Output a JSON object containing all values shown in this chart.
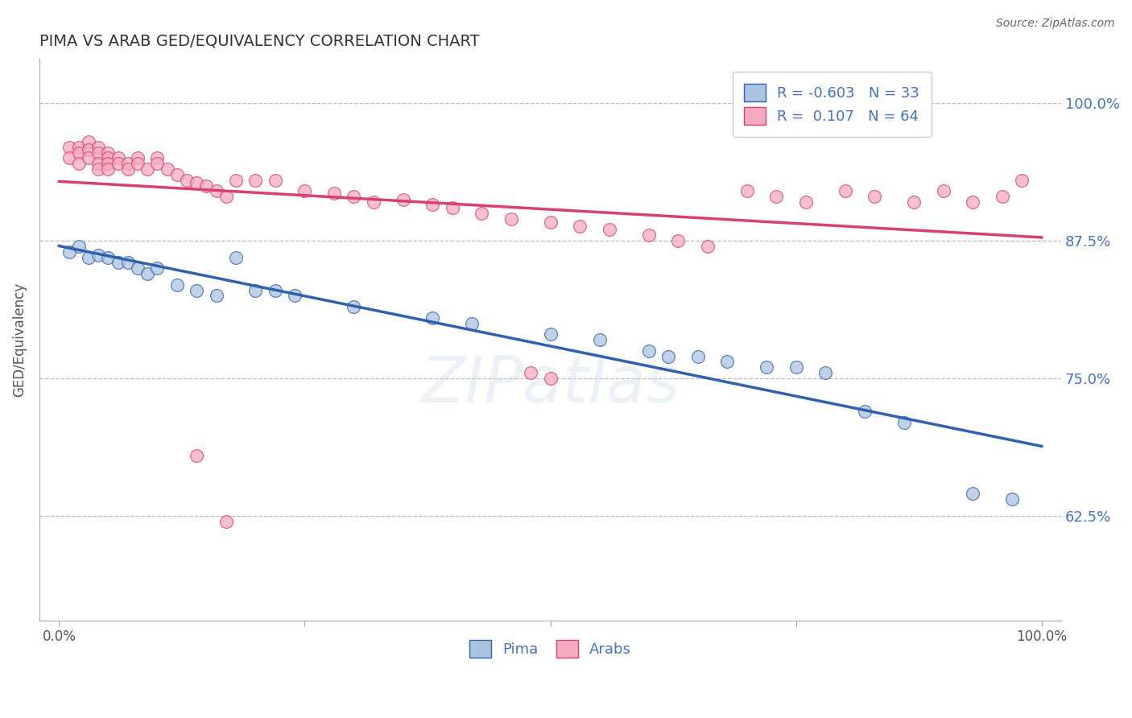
{
  "title": "PIMA VS ARAB GED/EQUIVALENCY CORRELATION CHART",
  "source": "Source: ZipAtlas.com",
  "ylabel": "GED/Equivalency",
  "ytick_labels": [
    "62.5%",
    "75.0%",
    "87.5%",
    "100.0%"
  ],
  "ytick_values": [
    0.625,
    0.75,
    0.875,
    1.0
  ],
  "pima_color": "#aac4e0",
  "arab_color": "#f5aabf",
  "pima_line_color": "#3060b0",
  "arab_line_color": "#d84070",
  "watermark": "ZIPatlas",
  "pima_x": [
    0.01,
    0.02,
    0.03,
    0.04,
    0.05,
    0.06,
    0.07,
    0.08,
    0.09,
    0.1,
    0.12,
    0.14,
    0.16,
    0.18,
    0.2,
    0.22,
    0.24,
    0.3,
    0.38,
    0.42,
    0.5,
    0.55,
    0.6,
    0.62,
    0.65,
    0.68,
    0.72,
    0.75,
    0.78,
    0.82,
    0.86,
    0.93,
    0.97
  ],
  "pima_y": [
    0.865,
    0.87,
    0.86,
    0.862,
    0.86,
    0.855,
    0.855,
    0.85,
    0.845,
    0.85,
    0.835,
    0.83,
    0.825,
    0.86,
    0.83,
    0.83,
    0.825,
    0.815,
    0.805,
    0.8,
    0.79,
    0.785,
    0.775,
    0.77,
    0.77,
    0.765,
    0.76,
    0.76,
    0.755,
    0.72,
    0.71,
    0.645,
    0.64
  ],
  "arab_x": [
    0.01,
    0.01,
    0.02,
    0.02,
    0.02,
    0.03,
    0.03,
    0.03,
    0.04,
    0.04,
    0.04,
    0.04,
    0.05,
    0.05,
    0.05,
    0.05,
    0.06,
    0.06,
    0.07,
    0.07,
    0.08,
    0.08,
    0.09,
    0.1,
    0.1,
    0.11,
    0.12,
    0.13,
    0.14,
    0.15,
    0.16,
    0.17,
    0.18,
    0.2,
    0.22,
    0.25,
    0.28,
    0.3,
    0.32,
    0.35,
    0.38,
    0.4,
    0.43,
    0.46,
    0.5,
    0.53,
    0.56,
    0.6,
    0.63,
    0.66,
    0.7,
    0.73,
    0.76,
    0.8,
    0.83,
    0.87,
    0.9,
    0.93,
    0.96,
    0.98,
    0.14,
    0.17,
    0.48,
    0.5
  ],
  "arab_y": [
    0.96,
    0.95,
    0.96,
    0.955,
    0.945,
    0.965,
    0.958,
    0.95,
    0.96,
    0.955,
    0.945,
    0.94,
    0.955,
    0.95,
    0.945,
    0.94,
    0.95,
    0.945,
    0.945,
    0.94,
    0.95,
    0.945,
    0.94,
    0.95,
    0.945,
    0.94,
    0.935,
    0.93,
    0.928,
    0.925,
    0.92,
    0.915,
    0.93,
    0.93,
    0.93,
    0.92,
    0.918,
    0.915,
    0.91,
    0.912,
    0.908,
    0.905,
    0.9,
    0.895,
    0.892,
    0.888,
    0.885,
    0.88,
    0.875,
    0.87,
    0.92,
    0.915,
    0.91,
    0.92,
    0.915,
    0.91,
    0.92,
    0.91,
    0.915,
    0.93,
    0.68,
    0.62,
    0.755,
    0.75
  ],
  "pima_R": -0.603,
  "arab_R": 0.107,
  "pima_N": 33,
  "arab_N": 64,
  "xlim": [
    -0.02,
    1.02
  ],
  "ylim": [
    0.53,
    1.04
  ]
}
